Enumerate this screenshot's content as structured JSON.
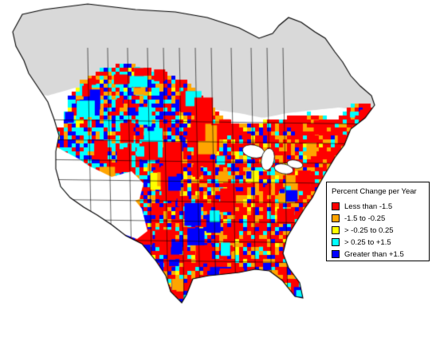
{
  "legend": {
    "title": "Percent Change per Year",
    "items": [
      {
        "label": "Less than -1.5",
        "color": "#ff0000"
      },
      {
        "label": "-1.5 to -0.25",
        "color": "#ffa500"
      },
      {
        "label": "> -0.25 to 0.25",
        "color": "#ffff00"
      },
      {
        "label": "> 0.25 to +1.5",
        "color": "#00ffff"
      },
      {
        "label": "Greater than +1.5",
        "color": "#0000ff"
      }
    ]
  },
  "colors": {
    "land": "#ffffff",
    "no_data": "#d9d9d9",
    "border": "#000000",
    "decrease_strong": "#ff0000",
    "decrease": "#ffa500",
    "stable": "#ffff00",
    "increase": "#00ffff",
    "increase_strong": "#0000ff"
  }
}
